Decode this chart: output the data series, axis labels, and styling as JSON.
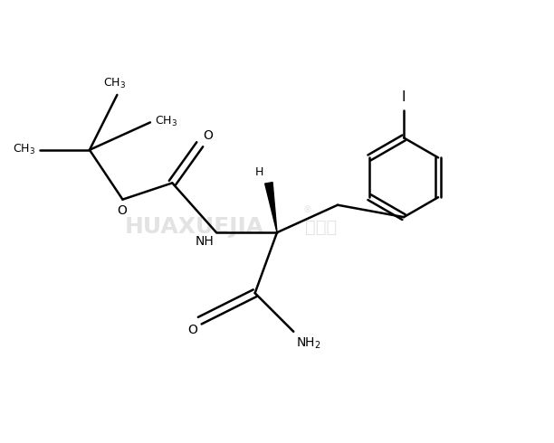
{
  "background_color": "#ffffff",
  "line_color": "#000000",
  "line_width": 1.8,
  "fig_width": 6.12,
  "fig_height": 4.9,
  "dpi": 100,
  "xlim": [
    0,
    10
  ],
  "ylim": [
    0,
    8
  ]
}
